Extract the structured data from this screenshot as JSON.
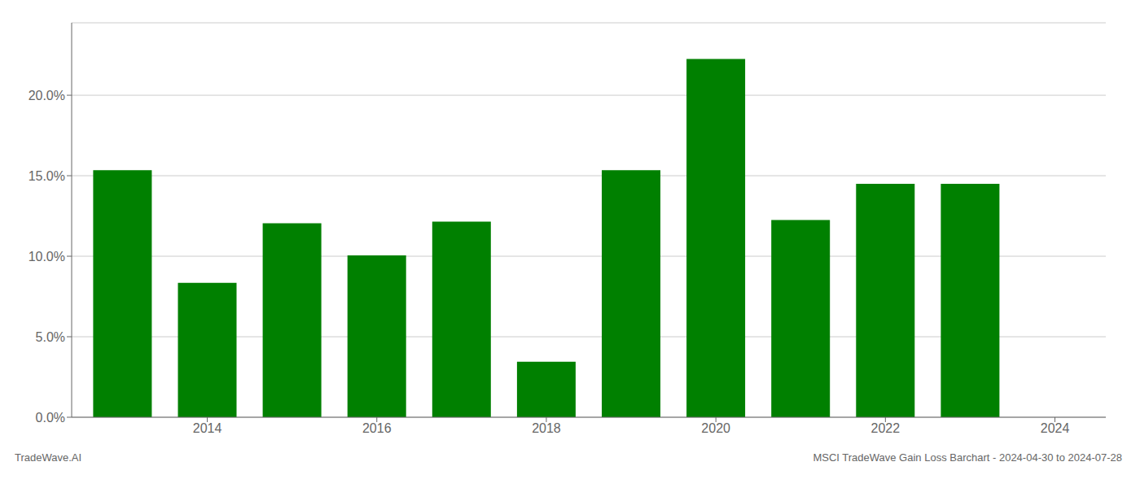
{
  "chart_data": {
    "type": "bar",
    "x": [
      2013,
      2014,
      2015,
      2016,
      2017,
      2018,
      2019,
      2020,
      2021,
      2022,
      2023
    ],
    "values": [
      0.1535,
      0.0835,
      0.1205,
      0.1005,
      0.1215,
      0.0345,
      0.1535,
      0.2225,
      0.1225,
      0.145,
      0.145
    ],
    "color": "#008000",
    "xlim": [
      2012.4,
      2024.6
    ],
    "xticks": [
      2014,
      2016,
      2018,
      2020,
      2022,
      2024
    ],
    "ylim": [
      0.0,
      0.245
    ],
    "yticks": [
      {
        "value": 0.0,
        "label": "0.0%"
      },
      {
        "value": 0.05,
        "label": "5.0%"
      },
      {
        "value": 0.1,
        "label": "10.0%"
      },
      {
        "value": 0.15,
        "label": "15.0%"
      },
      {
        "value": 0.2,
        "label": "20.0%"
      }
    ],
    "grid": "y",
    "annotations": [
      "TradeWave.AI",
      "MSCI TradeWave Gain Loss Barchart - 2024-04-30 to 2024-07-28"
    ]
  }
}
